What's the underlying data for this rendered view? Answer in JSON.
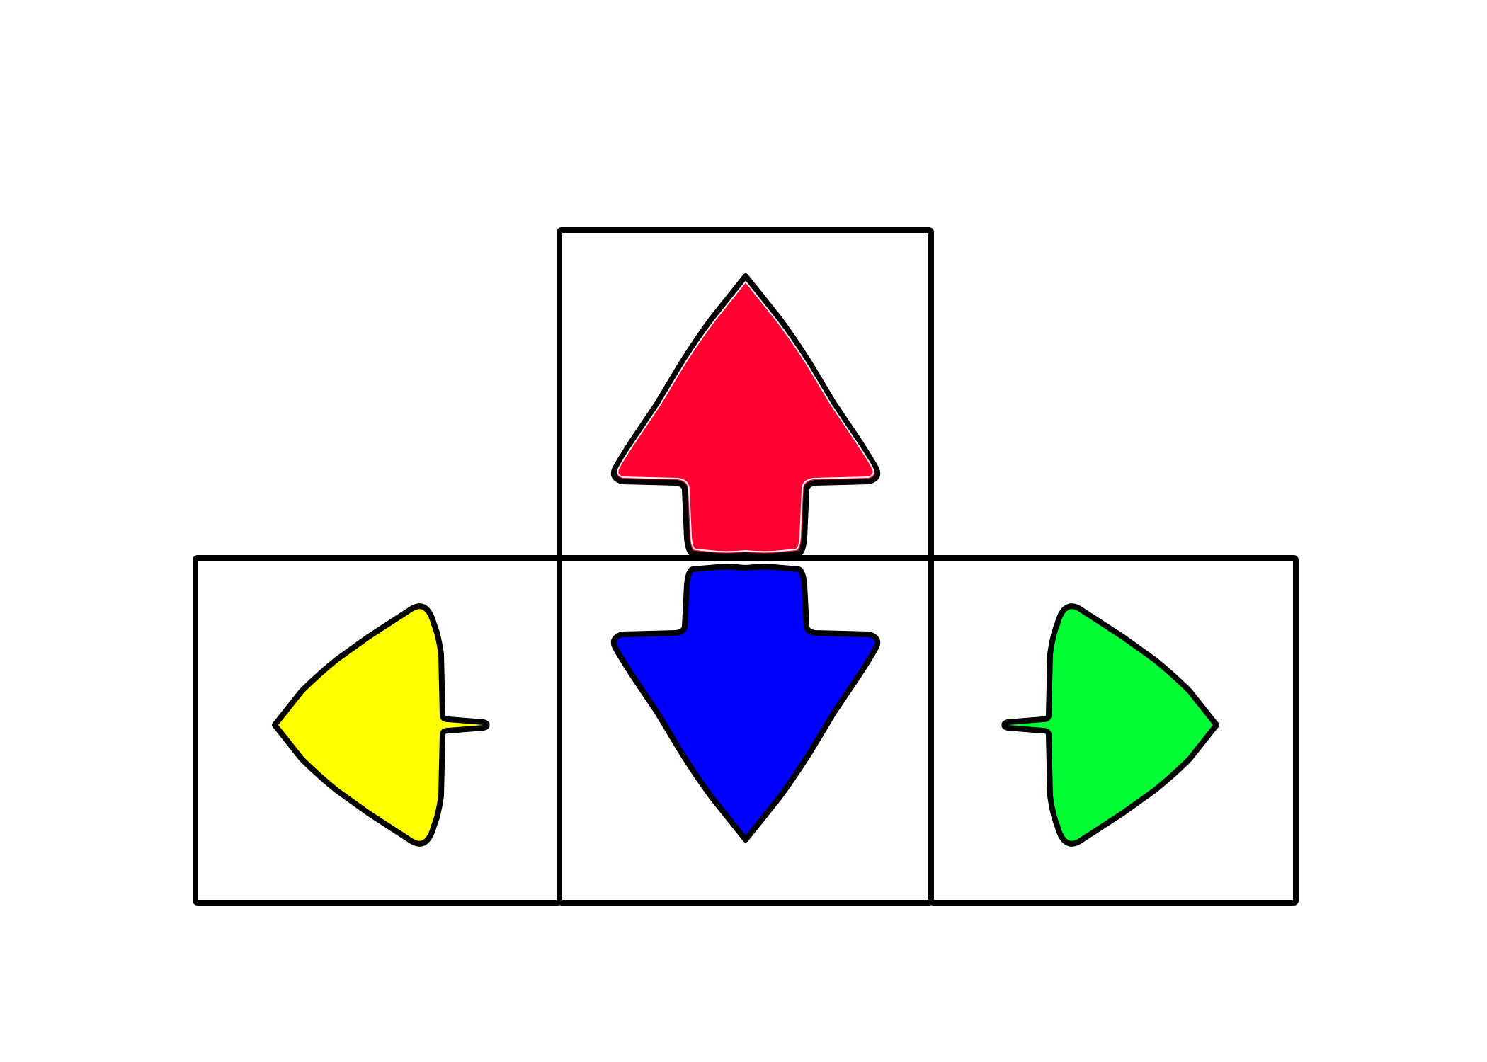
{
  "keys": [
    {
      "id": "up",
      "icon": "arrow-up-icon",
      "color": "#ff0030"
    },
    {
      "id": "left",
      "icon": "arrow-left-icon",
      "color": "#ffff00"
    },
    {
      "id": "down",
      "icon": "arrow-down-icon",
      "color": "#0000ff"
    },
    {
      "id": "right",
      "icon": "arrow-right-icon",
      "color": "#00ff33"
    }
  ]
}
